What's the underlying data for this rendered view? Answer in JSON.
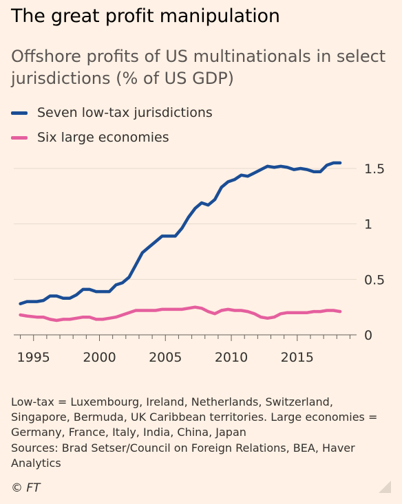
{
  "title": "The great profit manipulation",
  "subtitle": "Offshore profits of US multinationals in select jurisdictions (% of US GDP)",
  "notes": "Low-tax = Luxembourg, Ireland, Netherlands, Switzerland, Singapore, Bermuda, UK Caribbean territories. Large economies = Germany, France, Italy, India, China, Japan",
  "sources": "Sources: Brad Setser/Council on Foreign Relations, BEA, Haver Analytics",
  "copyright": "© FT",
  "chart_data": {
    "type": "line",
    "title": "The great profit manipulation",
    "subtitle": "Offshore profits of US multinationals in select jurisdictions (% of US GDP)",
    "xlabel": "",
    "ylabel": "",
    "xlim": [
      1993.5,
      2019.5
    ],
    "ylim": [
      0,
      1.5
    ],
    "yticks": [
      0,
      0.5,
      1,
      1.5
    ],
    "ytick_labels": [
      "0",
      "0.5",
      "1",
      "1.5"
    ],
    "xticks_labeled": [
      1995,
      2000,
      2005,
      2010,
      2015
    ],
    "axis_position": "right",
    "grid": true,
    "legend": "top-left",
    "series": [
      {
        "name": "Seven low-tax jurisdictions",
        "color": "#1a4d95",
        "points": [
          [
            1994,
            0.28
          ],
          [
            1994.5,
            0.3
          ],
          [
            1995.25,
            0.3
          ],
          [
            1995.75,
            0.31
          ],
          [
            1996.25,
            0.35
          ],
          [
            1996.75,
            0.35
          ],
          [
            1997.25,
            0.33
          ],
          [
            1997.75,
            0.33
          ],
          [
            1998.25,
            0.36
          ],
          [
            1998.75,
            0.41
          ],
          [
            1999.25,
            0.41
          ],
          [
            1999.75,
            0.39
          ],
          [
            2000.25,
            0.39
          ],
          [
            2000.75,
            0.39
          ],
          [
            2001.25,
            0.45
          ],
          [
            2001.75,
            0.47
          ],
          [
            2002.25,
            0.52
          ],
          [
            2002.75,
            0.63
          ],
          [
            2003.25,
            0.74
          ],
          [
            2003.75,
            0.79
          ],
          [
            2004.25,
            0.84
          ],
          [
            2004.75,
            0.89
          ],
          [
            2005.25,
            0.89
          ],
          [
            2005.75,
            0.89
          ],
          [
            2006.25,
            0.96
          ],
          [
            2006.75,
            1.06
          ],
          [
            2007.25,
            1.14
          ],
          [
            2007.75,
            1.19
          ],
          [
            2008.25,
            1.17
          ],
          [
            2008.75,
            1.22
          ],
          [
            2009.25,
            1.33
          ],
          [
            2009.75,
            1.38
          ],
          [
            2010.25,
            1.4
          ],
          [
            2010.75,
            1.44
          ],
          [
            2011.25,
            1.43
          ],
          [
            2011.75,
            1.46
          ],
          [
            2012.25,
            1.49
          ],
          [
            2012.75,
            1.52
          ],
          [
            2013.25,
            1.51
          ],
          [
            2013.75,
            1.52
          ],
          [
            2014.25,
            1.51
          ],
          [
            2014.75,
            1.49
          ],
          [
            2015.25,
            1.5
          ],
          [
            2015.75,
            1.49
          ],
          [
            2016.25,
            1.47
          ],
          [
            2016.75,
            1.47
          ],
          [
            2017.25,
            1.53
          ],
          [
            2017.75,
            1.55
          ],
          [
            2018.25,
            1.55
          ]
        ]
      },
      {
        "name": "Six large economies",
        "color": "#e55f9e",
        "points": [
          [
            1994,
            0.18
          ],
          [
            1994.5,
            0.17
          ],
          [
            1995.25,
            0.16
          ],
          [
            1995.75,
            0.16
          ],
          [
            1996.25,
            0.14
          ],
          [
            1996.75,
            0.13
          ],
          [
            1997.25,
            0.14
          ],
          [
            1997.75,
            0.14
          ],
          [
            1998.25,
            0.15
          ],
          [
            1998.75,
            0.16
          ],
          [
            1999.25,
            0.16
          ],
          [
            1999.75,
            0.14
          ],
          [
            2000.25,
            0.14
          ],
          [
            2000.75,
            0.15
          ],
          [
            2001.25,
            0.16
          ],
          [
            2001.75,
            0.18
          ],
          [
            2002.25,
            0.2
          ],
          [
            2002.75,
            0.22
          ],
          [
            2003.25,
            0.22
          ],
          [
            2003.75,
            0.22
          ],
          [
            2004.25,
            0.22
          ],
          [
            2004.75,
            0.23
          ],
          [
            2005.25,
            0.23
          ],
          [
            2005.75,
            0.23
          ],
          [
            2006.25,
            0.23
          ],
          [
            2006.75,
            0.24
          ],
          [
            2007.25,
            0.25
          ],
          [
            2007.75,
            0.24
          ],
          [
            2008.25,
            0.21
          ],
          [
            2008.75,
            0.19
          ],
          [
            2009.25,
            0.22
          ],
          [
            2009.75,
            0.23
          ],
          [
            2010.25,
            0.22
          ],
          [
            2010.75,
            0.22
          ],
          [
            2011.25,
            0.21
          ],
          [
            2011.75,
            0.19
          ],
          [
            2012.25,
            0.16
          ],
          [
            2012.75,
            0.15
          ],
          [
            2013.25,
            0.16
          ],
          [
            2013.75,
            0.19
          ],
          [
            2014.25,
            0.2
          ],
          [
            2014.75,
            0.2
          ],
          [
            2015.25,
            0.2
          ],
          [
            2015.75,
            0.2
          ],
          [
            2016.25,
            0.21
          ],
          [
            2016.75,
            0.21
          ],
          [
            2017.25,
            0.22
          ],
          [
            2017.75,
            0.22
          ],
          [
            2018.25,
            0.21
          ]
        ]
      }
    ]
  }
}
